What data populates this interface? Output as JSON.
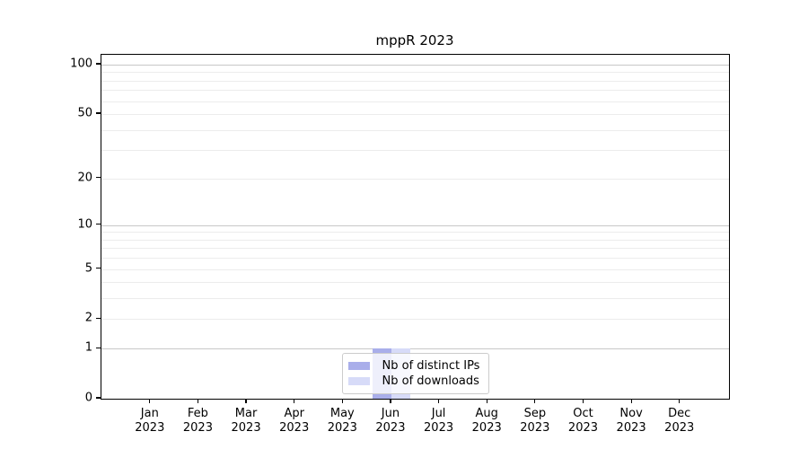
{
  "chart_data": {
    "type": "bar",
    "title": "mppR 2023",
    "x_tick_year": "2023",
    "categories": [
      "Jan 2023",
      "Feb 2023",
      "Mar 2023",
      "Apr 2023",
      "May 2023",
      "Jun 2023",
      "Jul 2023",
      "Aug 2023",
      "Sep 2023",
      "Oct 2023",
      "Nov 2023",
      "Dec 2023"
    ],
    "x_tick_months": [
      "Jan",
      "Feb",
      "Mar",
      "Apr",
      "May",
      "Jun",
      "Jul",
      "Aug",
      "Sep",
      "Oct",
      "Nov",
      "Dec"
    ],
    "series": [
      {
        "name": "Nb of distinct IPs",
        "color": "#a9aeea",
        "values": [
          0,
          0,
          0,
          0,
          0,
          1,
          0,
          0,
          0,
          0,
          0,
          0
        ]
      },
      {
        "name": "Nb of downloads",
        "color": "#d7dbf8",
        "values": [
          0,
          0,
          0,
          0,
          0,
          1,
          0,
          0,
          0,
          0,
          0,
          0
        ]
      }
    ],
    "yscale": "log1p",
    "ylim": [
      0,
      100
    ],
    "yticks": [
      0,
      1,
      2,
      5,
      10,
      20,
      50,
      100
    ],
    "major_gridlines": [
      1,
      10,
      100
    ],
    "minor_gridlines": [
      2,
      3,
      4,
      5,
      6,
      7,
      8,
      9,
      20,
      30,
      40,
      50,
      60,
      70,
      80,
      90
    ],
    "grid_color_major": "#c8c8c8",
    "grid_color_minor": "#ececec",
    "legend": {
      "position": "lower center",
      "entries": [
        "Nb of distinct IPs",
        "Nb of downloads"
      ]
    }
  }
}
